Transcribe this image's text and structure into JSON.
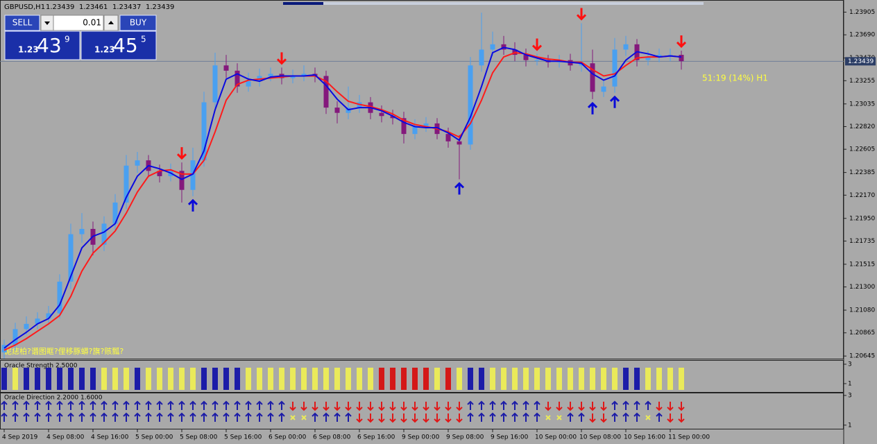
{
  "chart_data": {
    "type": "candlestick",
    "title": "GBPUSD,H1",
    "info": [
      1.23439,
      1.23461,
      1.23437,
      1.23439
    ],
    "current_price": 1.23439,
    "signal_text": "51:19 (14%) H1",
    "indicator_text": "泥痣柏?谮图眶?俚移豚蟒?旗?赅瓢?",
    "ylim": [
      1.2062,
      1.2402
    ],
    "yticks": [
      1.23905,
      {
        "value": 1.2369,
        "label": "1.23690"
      },
      {
        "value": 1.2347,
        "label": "1.23470"
      },
      1.23255,
      1.23035,
      {
        "value": 1.2282,
        "label": "1.22820"
      },
      1.22605,
      1.22385,
      {
        "value": 1.2217,
        "label": "1.22170"
      },
      {
        "value": 1.2195,
        "label": "1.21950"
      },
      1.21735,
      1.21515,
      {
        "value": 1.213,
        "label": "1.21300"
      },
      {
        "value": 1.2108,
        "label": "1.21080"
      },
      1.20865,
      1.20645
    ],
    "bull_color": "#4aa0f0",
    "bear_color": "#84197c",
    "categories": [
      "4 Sep 2019",
      null,
      null,
      null,
      "4 Sep 08:00",
      null,
      null,
      null,
      "4 Sep 16:00",
      null,
      null,
      null,
      "5 Sep 00:00",
      null,
      null,
      null,
      "5 Sep 08:00",
      null,
      null,
      null,
      "5 Sep 16:00",
      null,
      null,
      null,
      "6 Sep 00:00",
      null,
      null,
      null,
      "6 Sep 08:00",
      null,
      null,
      null,
      "6 Sep 16:00",
      null,
      null,
      null,
      "9 Sep 00:00",
      null,
      null,
      null,
      "9 Sep 08:00",
      null,
      null,
      null,
      "9 Sep 16:00",
      null,
      null,
      null,
      "10 Sep 00:00",
      null,
      null,
      null,
      "10 Sep 08:00",
      null,
      null,
      null,
      "10 Sep 16:00",
      null,
      null,
      null,
      "11 Sep 00:00",
      null
    ],
    "open": [
      1.2068,
      1.2075,
      1.209,
      1.2095,
      1.21,
      1.2105,
      1.2135,
      1.218,
      1.2185,
      1.217,
      1.219,
      1.221,
      1.2245,
      1.225,
      1.224,
      1.2235,
      1.224,
      1.2222,
      1.225,
      1.2305,
      1.234,
      1.2335,
      1.232,
      1.2325,
      1.233,
      1.2332,
      1.2328,
      1.233,
      1.2332,
      1.233,
      1.23,
      1.2295,
      1.23,
      1.2305,
      1.2295,
      1.2292,
      1.229,
      1.2275,
      1.2282,
      1.2285,
      1.2275,
      1.2268,
      1.2265,
      1.234,
      1.2355,
      1.236,
      1.2355,
      1.235,
      1.2345,
      1.2345,
      1.2343,
      1.2345,
      1.234,
      1.2342,
      1.2315,
      1.232,
      1.2355,
      1.236,
      1.2345,
      1.2348,
      1.235,
      1.235
    ],
    "high": [
      1.208,
      1.2096,
      1.2102,
      1.2106,
      1.2112,
      1.2142,
      1.219,
      1.22,
      1.2192,
      1.2197,
      1.2218,
      1.2255,
      1.2258,
      1.2255,
      1.2246,
      1.2247,
      1.2248,
      1.2262,
      1.2315,
      1.2352,
      1.235,
      1.2342,
      1.2333,
      1.2337,
      1.2338,
      1.2338,
      1.2336,
      1.234,
      1.2338,
      1.2335,
      1.2306,
      1.232,
      1.2312,
      1.231,
      1.2302,
      1.2298,
      1.2296,
      1.2289,
      1.2291,
      1.229,
      1.2281,
      1.2274,
      1.2348,
      1.239,
      1.2372,
      1.2368,
      1.2362,
      1.2356,
      1.2351,
      1.235,
      1.235,
      1.2351,
      1.238,
      1.2355,
      1.2326,
      1.2366,
      1.2368,
      1.2365,
      1.2354,
      1.2356,
      1.2356,
      1.2354
    ],
    "low": [
      1.2062,
      1.207,
      1.2085,
      1.209,
      1.2094,
      1.21,
      1.2128,
      1.2172,
      1.216,
      1.2164,
      1.2184,
      1.2204,
      1.2238,
      1.2234,
      1.2229,
      1.223,
      1.221,
      1.2216,
      1.2244,
      1.2298,
      1.2328,
      1.2314,
      1.2315,
      1.232,
      1.2325,
      1.2322,
      1.2323,
      1.2325,
      1.2324,
      1.2294,
      1.2285,
      1.2289,
      1.2295,
      1.2289,
      1.2286,
      1.2284,
      1.2266,
      1.227,
      1.2277,
      1.227,
      1.2262,
      1.2232,
      1.226,
      1.2334,
      1.2349,
      1.235,
      1.2344,
      1.2339,
      1.234,
      1.2338,
      1.2338,
      1.2335,
      1.2334,
      1.2308,
      1.231,
      1.2314,
      1.2349,
      1.2339,
      1.234,
      1.2343,
      1.2344,
      1.2336
    ],
    "close": [
      1.2075,
      1.209,
      1.2095,
      1.21,
      1.2105,
      1.2135,
      1.218,
      1.2185,
      1.217,
      1.219,
      1.221,
      1.2245,
      1.225,
      1.224,
      1.2235,
      1.224,
      1.2222,
      1.225,
      1.2305,
      1.234,
      1.2335,
      1.232,
      1.2325,
      1.233,
      1.2332,
      1.2328,
      1.233,
      1.2332,
      1.233,
      1.23,
      1.2295,
      1.23,
      1.2305,
      1.2295,
      1.2292,
      1.229,
      1.2275,
      1.2282,
      1.2285,
      1.2275,
      1.2268,
      1.2265,
      1.234,
      1.2355,
      1.236,
      1.2355,
      1.235,
      1.2345,
      1.2345,
      1.2343,
      1.2345,
      1.234,
      1.2342,
      1.2315,
      1.232,
      1.2355,
      1.236,
      1.2345,
      1.2348,
      1.235,
      1.235,
      1.2344
    ],
    "ma_series": [
      {
        "color": "#ff1a1a",
        "values": [
          1.207,
          1.2075,
          1.2081,
          1.2088,
          1.2095,
          1.2103,
          1.2121,
          1.2145,
          1.2162,
          1.2172,
          1.2183,
          1.22,
          1.222,
          1.2235,
          1.224,
          1.2241,
          1.2237,
          1.2237,
          1.225,
          1.2277,
          1.2307,
          1.2322,
          1.2326,
          1.2327,
          1.2328,
          1.2329,
          1.233,
          1.233,
          1.233,
          1.2325,
          1.2315,
          1.2306,
          1.2303,
          1.2301,
          1.2298,
          1.2294,
          1.2288,
          1.2284,
          1.2282,
          1.228,
          1.2277,
          1.2272,
          1.2285,
          1.2307,
          1.2333,
          1.2348,
          1.2352,
          1.2351,
          1.2348,
          1.2346,
          1.2345,
          1.2343,
          1.2343,
          1.2336,
          1.233,
          1.2332,
          1.234,
          1.2347,
          1.2348,
          1.2348,
          1.2349,
          1.2348
        ]
      },
      {
        "color": "#0a0ae0",
        "values": [
          1.2072,
          1.208,
          1.2087,
          1.2095,
          1.21,
          1.2113,
          1.214,
          1.2167,
          1.2178,
          1.2182,
          1.219,
          1.2215,
          1.2235,
          1.2245,
          1.2242,
          1.2238,
          1.2232,
          1.2237,
          1.2259,
          1.2298,
          1.2327,
          1.2332,
          1.2327,
          1.2325,
          1.2329,
          1.233,
          1.233,
          1.233,
          1.2331,
          1.2321,
          1.2308,
          1.2298,
          1.23,
          1.23,
          1.2297,
          1.2292,
          1.2286,
          1.2282,
          1.2281,
          1.2281,
          1.2276,
          1.2269,
          1.2291,
          1.232,
          1.2352,
          1.2357,
          1.2355,
          1.235,
          1.2347,
          1.2344,
          1.2344,
          1.2343,
          1.2342,
          1.2332,
          1.2326,
          1.233,
          1.2345,
          1.2353,
          1.2351,
          1.2348,
          1.2349,
          1.2348
        ]
      }
    ],
    "down_arrows": [
      16,
      25,
      48,
      52,
      61
    ],
    "up_arrows": [
      17,
      41,
      53,
      55
    ],
    "down_arrow_color": "#ff1010",
    "up_arrow_color": "#0a0ad8",
    "strength": {
      "title": "Oracle Strength 2.5000",
      "ylim": [
        0.14,
        3.43
      ],
      "yticks": [
        3,
        1
      ],
      "colors": [
        "#1c1ca8",
        "#eaea5a",
        "#1c1ca8",
        "#1c1ca8",
        "#1c1ca8",
        "#1c1ca8",
        "#1c1ca8",
        "#1c1ca8",
        "#1c1ca8",
        "#eaea5a",
        "#eaea5a",
        "#eaea5a",
        "#1c1ca8",
        "#eaea5a",
        "#eaea5a",
        "#eaea5a",
        "#eaea5a",
        "#eaea5a",
        "#1c1ca8",
        "#1c1ca8",
        "#1c1ca8",
        "#1c1ca8",
        "#eaea5a",
        "#eaea5a",
        "#eaea5a",
        "#eaea5a",
        "#eaea5a",
        "#eaea5a",
        "#eaea5a",
        "#eaea5a",
        "#eaea5a",
        "#eaea5a",
        "#eaea5a",
        "#eaea5a",
        "#d41818",
        "#d41818",
        "#d41818",
        "#d41818",
        "#d41818",
        "#eaea5a",
        "#d41818",
        "#eaea5a",
        "#1c1ca8",
        "#1c1ca8",
        "#eaea5a",
        "#eaea5a",
        "#eaea5a",
        "#eaea5a",
        "#eaea5a",
        "#eaea5a",
        "#eaea5a",
        "#eaea5a",
        "#eaea5a",
        "#eaea5a",
        "#eaea5a",
        "#eaea5a",
        "#1c1ca8",
        "#1c1ca8",
        "#eaea5a",
        "#eaea5a",
        "#eaea5a",
        "#eaea5a"
      ]
    },
    "direction": {
      "title": "Oracle Direction 2.2000 1.6000",
      "ylim": [
        0.71,
        3.14
      ],
      "yticks": [
        3,
        1
      ],
      "up_color": "#1c1ca8",
      "down_color": "#e01818",
      "rows": [
        [
          "#1c1ca8",
          "#1c1ca8",
          "#1c1ca8",
          "#1c1ca8",
          "#1c1ca8",
          "#1c1ca8",
          "#1c1ca8",
          "#1c1ca8",
          "#1c1ca8",
          "#1c1ca8",
          "#1c1ca8",
          "#1c1ca8",
          "#1c1ca8",
          "#1c1ca8",
          "#1c1ca8",
          "#1c1ca8",
          "#1c1ca8",
          "#1c1ca8",
          "#1c1ca8",
          "#1c1ca8",
          "#1c1ca8",
          "#1c1ca8",
          "#1c1ca8",
          "#1c1ca8",
          "#1c1ca8",
          "#1c1ca8",
          "#e01818",
          "#e01818",
          "#e01818",
          "#e01818",
          "#e01818",
          "#e01818",
          "#e01818",
          "#e01818",
          "#e01818",
          "#e01818",
          "#e01818",
          "#e01818",
          "#e01818",
          "#e01818",
          "#e01818",
          "#e01818",
          "#1c1ca8",
          "#1c1ca8",
          "#1c1ca8",
          "#1c1ca8",
          "#1c1ca8",
          "#1c1ca8",
          "#1c1ca8",
          "#e01818",
          "#e01818",
          "#e01818",
          "#e01818",
          "#e01818",
          "#e01818",
          "#1c1ca8",
          "#1c1ca8",
          "#1c1ca8",
          "#1c1ca8",
          "#e01818",
          "#e01818",
          "#e01818"
        ],
        [
          "#1c1ca8",
          "#1c1ca8",
          "#1c1ca8",
          "#1c1ca8",
          "#1c1ca8",
          "#1c1ca8",
          "#1c1ca8",
          "#1c1ca8",
          "#1c1ca8",
          "#1c1ca8",
          "#1c1ca8",
          "#1c1ca8",
          "#1c1ca8",
          "#1c1ca8",
          "#1c1ca8",
          "#1c1ca8",
          "#1c1ca8",
          "#1c1ca8",
          "#1c1ca8",
          "#1c1ca8",
          "#1c1ca8",
          "#1c1ca8",
          "#1c1ca8",
          "#1c1ca8",
          "#1c1ca8",
          "#1c1ca8",
          "#eaea5a",
          "#eaea5a",
          "#1c1ca8",
          "#1c1ca8",
          "#1c1ca8",
          "#1c1ca8",
          "#e01818",
          "#e01818",
          "#e01818",
          "#e01818",
          "#e01818",
          "#e01818",
          "#e01818",
          "#e01818",
          "#e01818",
          "#e01818",
          "#1c1ca8",
          "#1c1ca8",
          "#1c1ca8",
          "#1c1ca8",
          "#1c1ca8",
          "#1c1ca8",
          "#1c1ca8",
          "#eaea5a",
          "#eaea5a",
          "#1c1ca8",
          "#1c1ca8",
          "#e01818",
          "#e01818",
          "#1c1ca8",
          "#1c1ca8",
          "#1c1ca8",
          "#eaea5a",
          "#1c1ca8",
          "#e01818",
          "#e01818"
        ]
      ]
    }
  },
  "widget": {
    "sell": "SELL",
    "buy": "BUY",
    "lot": 0.01,
    "bid": {
      "prefix": "1.23",
      "big": "43",
      "small": "9"
    },
    "ask": {
      "prefix": "1.23",
      "big": "45",
      "small": "5"
    }
  }
}
